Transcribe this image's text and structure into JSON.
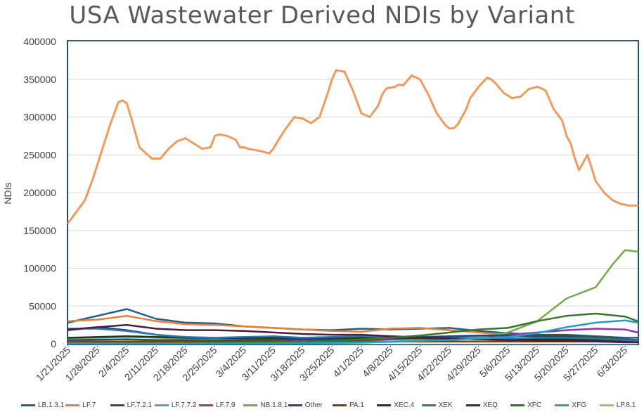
{
  "chart_data": {
    "type": "line",
    "title": "USA Wastewater Derived NDIs by Variant",
    "ylabel": "NDIs",
    "xlabel": "",
    "ylim": [
      0,
      400000
    ],
    "yticks": [
      "0",
      "50000",
      "100000",
      "150000",
      "200000",
      "250000",
      "300000",
      "350000",
      "400000"
    ],
    "yticks_values": [
      0,
      50000,
      100000,
      150000,
      200000,
      250000,
      300000,
      350000,
      400000
    ],
    "xticks": [
      "1/21/2025",
      "1/28/2025",
      "2/4/2025",
      "2/11/2025",
      "2/18/2025",
      "2/25/2025",
      "3/4/2025",
      "3/11/2025",
      "3/18/2025",
      "3/25/2025",
      "4/1/2025",
      "4/8/2025",
      "4/15/2025",
      "4/22/2025",
      "4/29/2025",
      "5/6/2025",
      "5/13/2025",
      "5/20/2025",
      "5/27/2025",
      "6/3/2025"
    ],
    "xrange_days": [
      0,
      136
    ],
    "series": [
      {
        "name": "LB.1.3.1",
        "color": "#1f5f8b",
        "x": [
          0,
          7,
          14,
          21,
          28,
          35,
          42,
          49,
          56,
          63,
          70,
          77,
          84,
          91,
          98,
          105,
          112,
          119,
          126,
          133,
          136
        ],
        "values": [
          28000,
          37000,
          46000,
          33000,
          28000,
          27000,
          23000,
          21000,
          19000,
          18000,
          20000,
          19000,
          20000,
          21000,
          17000,
          14000,
          12000,
          12000,
          10000,
          8000,
          8000
        ]
      },
      {
        "name": "LF.7",
        "color": "#ed7d31",
        "x": [
          0,
          7,
          14,
          21,
          28,
          35,
          42,
          49,
          56,
          63,
          70,
          77,
          84,
          91,
          98,
          105,
          112,
          119,
          126,
          133,
          136
        ],
        "values": [
          30000,
          32000,
          37000,
          30000,
          26000,
          25000,
          23000,
          21000,
          19000,
          17000,
          16000,
          20000,
          21000,
          18000,
          15000,
          12000,
          11000,
          10000,
          9000,
          6000,
          5000
        ]
      },
      {
        "name": "LF.7.2.1",
        "color": "#375623",
        "x": [
          0,
          7,
          14,
          21,
          28,
          35,
          42,
          49,
          56,
          63,
          70,
          77,
          84,
          91,
          98,
          105,
          112,
          119,
          126,
          133,
          136
        ],
        "values": [
          5000,
          5500,
          6000,
          5000,
          5000,
          5000,
          5000,
          5000,
          5000,
          5000,
          5000,
          6000,
          7000,
          9000,
          10000,
          11000,
          12000,
          11000,
          9000,
          6000,
          5000
        ]
      },
      {
        "name": "LF.7.7.2",
        "color": "#5b9bd5",
        "x": [
          0,
          7,
          14,
          21,
          28,
          35,
          42,
          49,
          56,
          63,
          70,
          77,
          84,
          91,
          98,
          105,
          112,
          119,
          126,
          133,
          136
        ],
        "values": [
          7000,
          8000,
          9000,
          8000,
          7000,
          7000,
          7000,
          7000,
          7000,
          8000,
          9000,
          10000,
          9000,
          8000,
          8000,
          8000,
          7000,
          7000,
          6000,
          5000,
          4000
        ]
      },
      {
        "name": "LF.7.9",
        "color": "#9b2fae",
        "x": [
          0,
          7,
          14,
          21,
          28,
          35,
          42,
          49,
          56,
          63,
          70,
          77,
          84,
          91,
          98,
          105,
          112,
          119,
          126,
          133,
          136
        ],
        "values": [
          3000,
          3000,
          3000,
          3000,
          3000,
          3000,
          3000,
          3000,
          4000,
          5000,
          6000,
          7000,
          8000,
          9000,
          10000,
          12000,
          15000,
          18000,
          20000,
          19000,
          15000
        ]
      },
      {
        "name": "NB.1.8.1",
        "color": "#70ad47",
        "x": [
          0,
          7,
          14,
          21,
          28,
          35,
          42,
          49,
          56,
          63,
          70,
          77,
          84,
          91,
          98,
          105,
          112,
          119,
          126,
          130,
          133,
          136
        ],
        "values": [
          500,
          500,
          500,
          500,
          500,
          500,
          500,
          500,
          500,
          1000,
          1500,
          2500,
          4000,
          6000,
          9000,
          15000,
          30000,
          60000,
          75000,
          105000,
          124000,
          122000
        ]
      },
      {
        "name": "Other",
        "color": "#264478",
        "x": [
          0,
          7,
          14,
          21,
          28,
          35,
          42,
          49,
          56,
          63,
          70,
          77,
          84,
          91,
          98,
          105,
          112,
          119,
          126,
          133,
          136
        ],
        "values": [
          18000,
          22000,
          18000,
          12000,
          8000,
          8000,
          7000,
          7000,
          6000,
          6000,
          7000,
          8000,
          9000,
          10000,
          11000,
          11000,
          10000,
          9000,
          7000,
          5000,
          4000
        ]
      },
      {
        "name": "PA.1",
        "color": "#843c0c",
        "x": [
          0,
          7,
          14,
          21,
          28,
          35,
          42,
          49,
          56,
          63,
          70,
          77,
          84,
          91,
          98,
          105,
          112,
          119,
          126,
          133,
          136
        ],
        "values": [
          2000,
          2500,
          3000,
          3000,
          3000,
          3000,
          3000,
          3000,
          3000,
          3000,
          3000,
          3000,
          3000,
          3000,
          3000,
          3000,
          3000,
          3000,
          3000,
          2500,
          2000
        ]
      },
      {
        "name": "XEC.4",
        "color": "#1e3a0f",
        "x": [
          0,
          7,
          14,
          21,
          28,
          35,
          42,
          49,
          56,
          63,
          70,
          77,
          84,
          91,
          98,
          105,
          112,
          119,
          126,
          133,
          136
        ],
        "values": [
          8000,
          9000,
          10000,
          9000,
          8000,
          8000,
          8000,
          8000,
          8000,
          8000,
          8000,
          8000,
          7000,
          7000,
          6000,
          6000,
          6000,
          6000,
          5000,
          4000,
          3000
        ]
      },
      {
        "name": "XEK",
        "color": "#2e75b6",
        "x": [
          0,
          7,
          14,
          21,
          28,
          35,
          42,
          49,
          56,
          63,
          70,
          77,
          84,
          91,
          98,
          105,
          112,
          119,
          126,
          133,
          136
        ],
        "values": [
          20000,
          20000,
          17000,
          12000,
          9000,
          8000,
          9000,
          10000,
          8000,
          9000,
          10000,
          9000,
          8000,
          7000,
          7000,
          7000,
          8000,
          8000,
          7000,
          5000,
          4000
        ]
      },
      {
        "name": "XEQ",
        "color": "#4b1d3f",
        "x": [
          0,
          7,
          14,
          21,
          28,
          35,
          42,
          49,
          56,
          63,
          70,
          77,
          84,
          91,
          98,
          105,
          112,
          119,
          126,
          133,
          136
        ],
        "values": [
          19000,
          22000,
          25000,
          20000,
          18000,
          18000,
          17000,
          15000,
          13000,
          12000,
          12000,
          10000,
          8000,
          7000,
          6000,
          5000,
          4000,
          4000,
          3000,
          2000,
          2000
        ]
      },
      {
        "name": "XFC",
        "color": "#38762c",
        "x": [
          0,
          7,
          14,
          21,
          28,
          35,
          42,
          49,
          56,
          63,
          70,
          77,
          84,
          91,
          98,
          105,
          112,
          119,
          126,
          133,
          136
        ],
        "values": [
          1000,
          1000,
          1000,
          1000,
          1000,
          1500,
          2000,
          2500,
          3000,
          4000,
          6000,
          8000,
          11000,
          15000,
          19000,
          21000,
          30000,
          37000,
          40000,
          36000,
          30000
        ]
      },
      {
        "name": "XFG",
        "color": "#1f9ec7",
        "x": [
          0,
          7,
          14,
          21,
          28,
          35,
          42,
          49,
          56,
          63,
          70,
          77,
          84,
          91,
          98,
          105,
          112,
          119,
          126,
          133,
          136
        ],
        "values": [
          500,
          500,
          500,
          500,
          500,
          500,
          500,
          500,
          1000,
          1500,
          2000,
          3000,
          4000,
          5000,
          7000,
          9000,
          14000,
          22000,
          28000,
          31000,
          28000
        ]
      },
      {
        "name": "LP.8.1",
        "color": "#f29a5c",
        "x": [
          0,
          2,
          4,
          6,
          8,
          10,
          12,
          13,
          14,
          15,
          16,
          17,
          18,
          20,
          22,
          24,
          26,
          28,
          30,
          32,
          34,
          35,
          36,
          37,
          38,
          40,
          41,
          42,
          43,
          44,
          45,
          46,
          48,
          49,
          50,
          52,
          54,
          56,
          58,
          60,
          62,
          63,
          64,
          66,
          68,
          70,
          72,
          74,
          75,
          76,
          78,
          79,
          80,
          82,
          84,
          86,
          88,
          90,
          91,
          92,
          93,
          94,
          95,
          96,
          98,
          100,
          101,
          102,
          104,
          106,
          108,
          110,
          112,
          113,
          114,
          116,
          118,
          119,
          120,
          121,
          122,
          124,
          126,
          128,
          130,
          132,
          133,
          134,
          135,
          136
        ],
        "values": [
          160000,
          175000,
          190000,
          220000,
          255000,
          290000,
          320000,
          322000,
          318000,
          300000,
          280000,
          260000,
          255000,
          245000,
          245000,
          258000,
          268000,
          272000,
          265000,
          258000,
          260000,
          275000,
          277000,
          276000,
          275000,
          270000,
          260000,
          260000,
          258000,
          257000,
          256000,
          255000,
          252000,
          258000,
          268000,
          285000,
          300000,
          298000,
          292000,
          300000,
          332000,
          350000,
          362000,
          360000,
          335000,
          305000,
          300000,
          315000,
          330000,
          338000,
          340000,
          343000,
          342000,
          355000,
          350000,
          330000,
          305000,
          290000,
          285000,
          285000,
          290000,
          300000,
          310000,
          325000,
          340000,
          352000,
          350000,
          345000,
          332000,
          325000,
          327000,
          337000,
          340000,
          338000,
          335000,
          310000,
          295000,
          275000,
          265000,
          245000,
          230000,
          250000,
          215000,
          200000,
          190000,
          185000,
          184000,
          183000,
          183000,
          183000
        ]
      }
    ]
  },
  "legend_items": [
    "LB.1.3.1",
    "LF.7",
    "LF.7.2.1",
    "LF.7.7.2",
    "LF.7.9",
    "NB.1.8.1",
    "Other",
    "PA.1",
    "XEC.4",
    "XEK",
    "XEQ",
    "XFC",
    "XFG",
    "LP.8.1"
  ]
}
